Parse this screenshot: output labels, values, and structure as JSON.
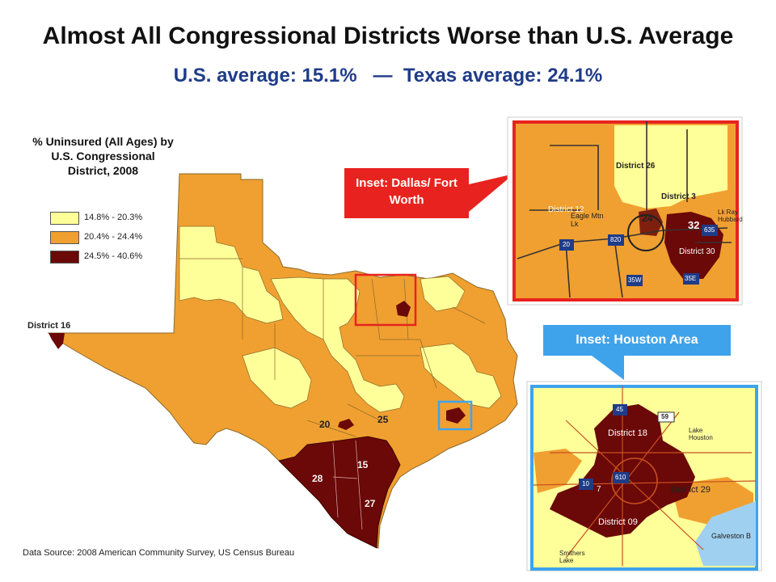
{
  "title": "Almost All Congressional Districts Worse than U.S. Average",
  "subtitle": "U.S. average: 15.1%   —  Texas average: 24.1%",
  "legend": {
    "title": "% Uninsured (All Ages) by U.S. Congressional District, 2008",
    "items": [
      {
        "label": "14.8% - 20.3%",
        "color": "#ffff99"
      },
      {
        "label": "20.4% - 24.4%",
        "color": "#f0a030"
      },
      {
        "label": "24.5% - 40.6%",
        "color": "#6b0808"
      }
    ]
  },
  "map_labels": {
    "district16": "District 16",
    "d20": "20",
    "d25": "25",
    "d15": "15",
    "d28": "28",
    "d27": "27"
  },
  "callouts": {
    "dallas": "Inset: Dallas/ Fort Worth",
    "houston": "Inset: Houston Area"
  },
  "dallas_inset": {
    "district26": "District 26",
    "district3": "District 3",
    "district12": "District 12",
    "eagle": "Eagle Mtn Lk",
    "d24": "24",
    "d32": "32",
    "district30": "District 30",
    "lk_ray": "Lk Ray Hubbard",
    "i20": "20",
    "i820": "820",
    "i35w": "35W",
    "i35e": "35E",
    "i635": "635"
  },
  "houston_inset": {
    "i45": "45",
    "us59": "59",
    "lake_houston": "Lake Houston",
    "district18": "District 18",
    "i10": "10",
    "i610": "610",
    "d7": "7",
    "district29": "District 29",
    "district09": "District 09",
    "galveston": "Galveston B",
    "smithers": "Smithers Lake"
  },
  "source": "Data Source: 2008 American Community Survey, US Census Bureau",
  "colors": {
    "low": "#ffff99",
    "mid": "#f0a030",
    "high": "#6b0808",
    "callout_red": "#e8231f",
    "callout_blue": "#3fa3ec",
    "subtitle_blue": "#1f3c88"
  }
}
